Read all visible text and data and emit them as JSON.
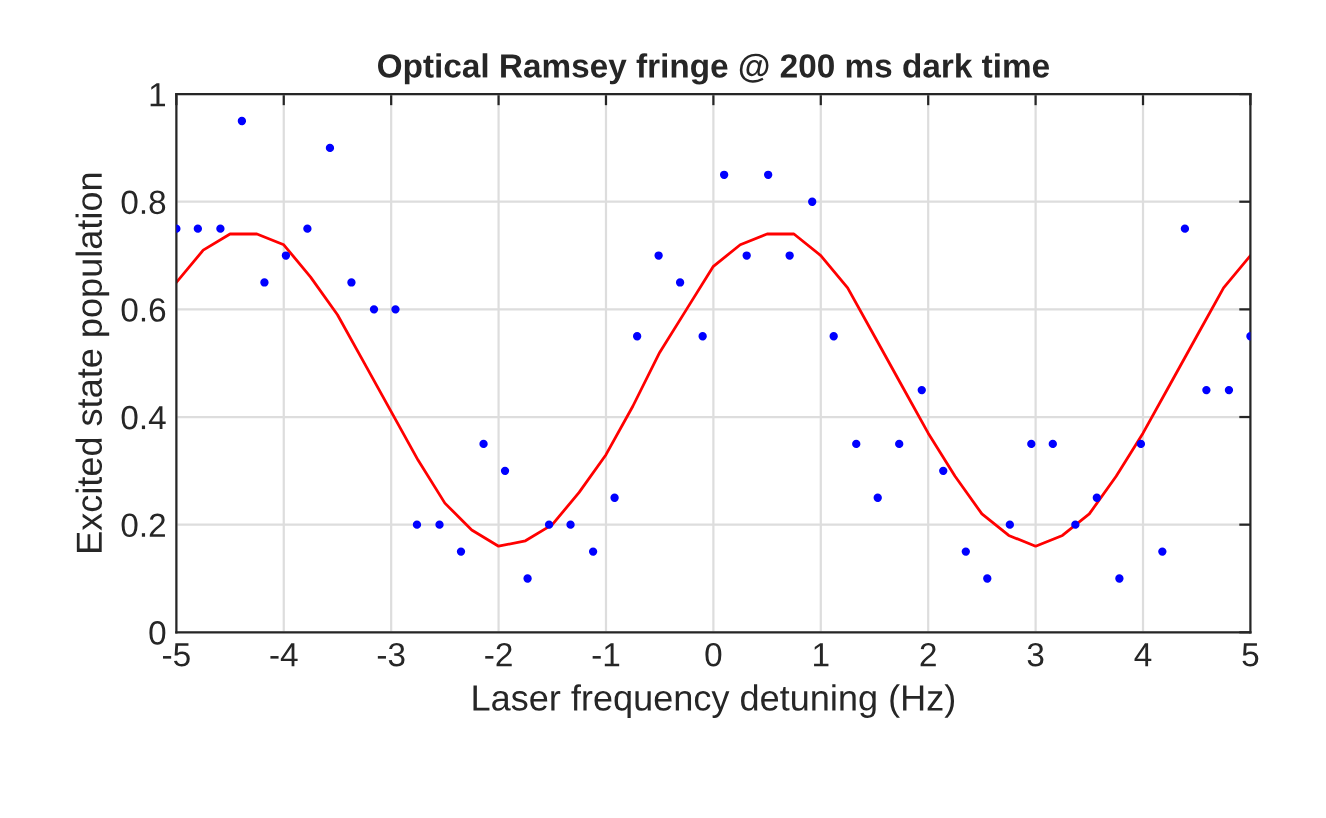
{
  "chart_data": {
    "type": "scatter",
    "title": "Optical Ramsey fringe @ 200 ms dark time",
    "xlabel": "Laser frequency detuning (Hz)",
    "ylabel": "Excited state population",
    "xlim": [
      -5,
      5
    ],
    "ylim": [
      0,
      1
    ],
    "xticks": [
      -5,
      -4,
      -3,
      -2,
      -1,
      0,
      1,
      2,
      3,
      4,
      5
    ],
    "yticks": [
      0,
      0.2,
      0.4,
      0.6,
      0.8,
      1
    ],
    "grid": true,
    "legend": false,
    "marker": "circle",
    "series": [
      {
        "color": "#0000ff",
        "x": [
          -5.0,
          -4.8,
          -4.59,
          -4.39,
          -4.18,
          -3.98,
          -3.78,
          -3.57,
          -3.37,
          -3.16,
          -2.96,
          -2.76,
          -2.55,
          -2.35,
          -2.14,
          -1.94,
          -1.73,
          -1.53,
          -1.33,
          -1.12,
          -0.92,
          -0.71,
          -0.51,
          -0.31,
          -0.1,
          0.1,
          0.31,
          0.51,
          0.71,
          0.92,
          1.12,
          1.33,
          1.53,
          1.73,
          1.94,
          2.14,
          2.35,
          2.55,
          2.76,
          2.96,
          3.16,
          3.37,
          3.57,
          3.78,
          3.98,
          4.18,
          4.39,
          4.59,
          4.8,
          5.0
        ],
        "values": [
          0.75,
          0.75,
          0.75,
          0.95,
          0.65,
          0.7,
          0.75,
          0.9,
          0.65,
          0.6,
          0.6,
          0.2,
          0.2,
          0.15,
          0.35,
          0.3,
          0.1,
          0.2,
          0.2,
          0.15,
          0.25,
          0.55,
          0.7,
          0.65,
          0.55,
          0.85,
          0.7,
          0.85,
          0.7,
          0.8,
          0.55,
          0.35,
          0.25,
          0.35,
          0.45,
          0.3,
          0.15,
          0.1,
          0.2,
          0.35,
          0.35,
          0.2,
          0.25,
          0.1,
          0.35,
          0.15,
          0.75,
          0.45,
          0.45,
          0.55
        ]
      },
      {
        "type": "line",
        "color": "#ff0000",
        "marker": "none",
        "line_style": "solid",
        "x": [
          -5,
          -4.75,
          -4.5,
          -4.25,
          -4,
          -3.75,
          -3.5,
          -3.25,
          -3,
          -2.75,
          -2.5,
          -2.25,
          -2,
          -1.75,
          -1.5,
          -1.25,
          -1,
          -0.75,
          -0.5,
          -0.25,
          0,
          0.25,
          0.5,
          0.75,
          1,
          1.25,
          1.5,
          1.75,
          2,
          2.25,
          2.5,
          2.75,
          3,
          3.25,
          3.5,
          3.75,
          4,
          4.25,
          4.5,
          4.75,
          5
        ],
        "values": [
          0.65,
          0.71,
          0.74,
          0.74,
          0.72,
          0.66,
          0.59,
          0.5,
          0.41,
          0.32,
          0.24,
          0.19,
          0.16,
          0.17,
          0.2,
          0.26,
          0.33,
          0.42,
          0.52,
          0.6,
          0.68,
          0.72,
          0.74,
          0.74,
          0.7,
          0.64,
          0.55,
          0.46,
          0.37,
          0.29,
          0.22,
          0.18,
          0.16,
          0.18,
          0.22,
          0.29,
          0.37,
          0.46,
          0.55,
          0.64,
          0.7
        ]
      }
    ]
  }
}
